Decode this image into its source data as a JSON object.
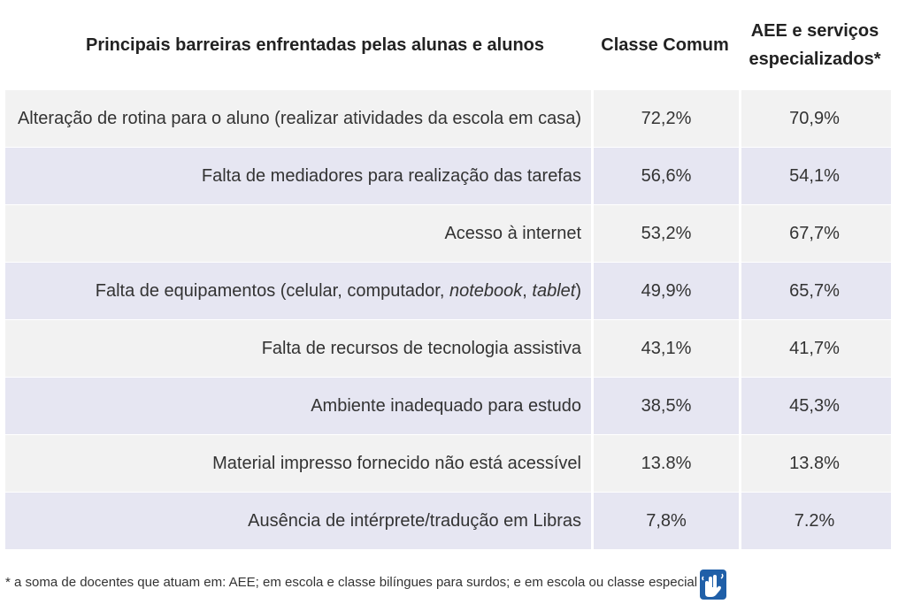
{
  "header": {
    "col1": "Principais barreiras enfrentadas pelas alunas e alunos",
    "col2": "Classe Comum",
    "col3_line1": "AEE e serviços",
    "col3_line2": "especializados*"
  },
  "rows": [
    {
      "barrier": "Alteração de rotina para o aluno (realizar atividades da escola em casa)",
      "comum": "72,2%",
      "aee": "70,9%"
    },
    {
      "barrier": "Falta de mediadores para realização das tarefas",
      "comum": "56,6%",
      "aee": "54,1%"
    },
    {
      "barrier": "Acesso à internet",
      "comum": "53,2%",
      "aee": "67,7%"
    },
    {
      "barrier_pre": "Falta de equipamentos (celular, computador, ",
      "barrier_em1": "notebook",
      "barrier_mid": ", ",
      "barrier_em2": "tablet",
      "barrier_post": ")",
      "comum": "49,9%",
      "aee": "65,7%"
    },
    {
      "barrier": "Falta de recursos de tecnologia assistiva",
      "comum": "43,1%",
      "aee": "41,7%"
    },
    {
      "barrier": "Ambiente inadequado para estudo",
      "comum": "38,5%",
      "aee": "45,3%"
    },
    {
      "barrier": "Material impresso fornecido não está acessível",
      "comum": "13.8%",
      "aee": "13.8%"
    },
    {
      "barrier": "Ausência de intérprete/tradução em Libras",
      "comum": "7,8%",
      "aee": "7.2%"
    }
  ],
  "footnote": "* a soma de docentes que atuam em: AEE; em escola e classe bilíngues para surdos; e em escola ou classe especial",
  "icons": {
    "libras": "libras-sign-language-icon"
  },
  "colors": {
    "row_light": "#f2f2f2",
    "row_tinted": "#e6e6f2",
    "icon_bg": "#1f5fa8"
  }
}
